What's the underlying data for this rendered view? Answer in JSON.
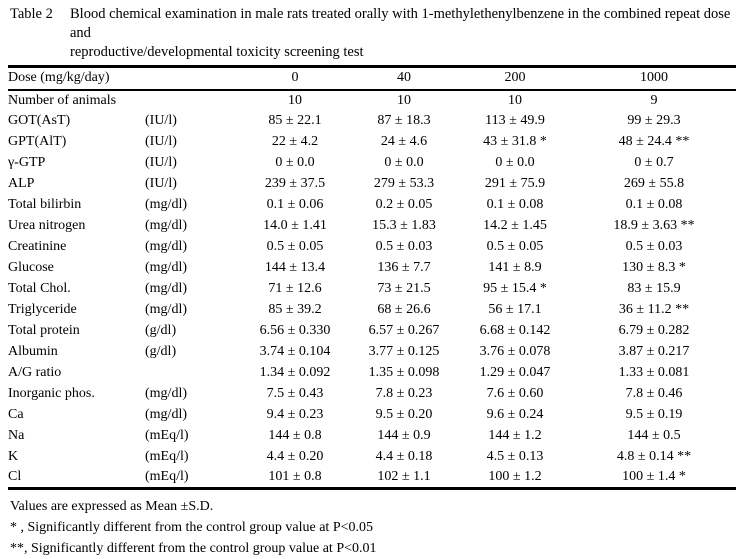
{
  "page": {
    "label": "Table 2",
    "caption_lines": [
      "Blood chemical examination in male rats treated orally with 1-methylethenylbenzene in the combined repeat dose and",
      "reproductive/developmental toxicity screening test"
    ]
  },
  "table": {
    "header": {
      "dose_label": "Dose (mg/kg/day)",
      "doses": [
        "0",
        "40",
        "200",
        "1000"
      ]
    },
    "rows": [
      {
        "param": "Number of animals",
        "unit": "",
        "values": [
          "10",
          "10",
          "10",
          "9"
        ]
      },
      {
        "param": "GOT(AsT)",
        "unit": "(IU/l)",
        "values": [
          "85 ± 22.1",
          "87 ± 18.3",
          "113 ± 49.9",
          "99 ± 29.3"
        ]
      },
      {
        "param": "GPT(AlT)",
        "unit": "(IU/l)",
        "values": [
          "22 ± 4.2",
          "24 ± 4.6",
          "43 ± 31.8 *",
          "48 ± 24.4 **"
        ]
      },
      {
        "param": "γ-GTP",
        "unit": "(IU/l)",
        "values": [
          "0 ± 0.0",
          "0 ± 0.0",
          "0 ± 0.0",
          "0 ± 0.7"
        ]
      },
      {
        "param": "ALP",
        "unit": "(IU/l)",
        "values": [
          "239 ± 37.5",
          "279 ± 53.3",
          "291 ± 75.9",
          "269 ± 55.8"
        ]
      },
      {
        "param": "Total bilirbin",
        "unit": "(mg/dl)",
        "values": [
          "0.1 ± 0.06",
          "0.2 ± 0.05",
          "0.1 ± 0.08",
          "0.1 ± 0.08"
        ]
      },
      {
        "param": "Urea nitrogen",
        "unit": "(mg/dl)",
        "values": [
          "14.0 ± 1.41",
          "15.3 ± 1.83",
          "14.2 ± 1.45",
          "18.9 ± 3.63 **"
        ]
      },
      {
        "param": "Creatinine",
        "unit": "(mg/dl)",
        "values": [
          "0.5 ± 0.05",
          "0.5 ± 0.03",
          "0.5 ± 0.05",
          "0.5 ± 0.03"
        ]
      },
      {
        "param": "Glucose",
        "unit": "(mg/dl)",
        "values": [
          "144 ± 13.4",
          "136 ± 7.7",
          "141 ± 8.9",
          "130 ± 8.3 *"
        ]
      },
      {
        "param": "Total Chol.",
        "unit": "(mg/dl)",
        "values": [
          "71 ± 12.6",
          "73 ± 21.5",
          "95 ± 15.4 *",
          "83 ± 15.9"
        ]
      },
      {
        "param": "Triglyceride",
        "unit": "(mg/dl)",
        "values": [
          "85 ± 39.2",
          "68 ± 26.6",
          "56 ± 17.1",
          "36 ± 11.2 **"
        ]
      },
      {
        "param": "Total protein",
        "unit": "(g/dl)",
        "values": [
          "6.56 ± 0.330",
          "6.57 ± 0.267",
          "6.68 ± 0.142",
          "6.79 ± 0.282"
        ]
      },
      {
        "param": "Albumin",
        "unit": "(g/dl)",
        "values": [
          "3.74 ± 0.104",
          "3.77 ± 0.125",
          "3.76 ± 0.078",
          "3.87 ± 0.217"
        ]
      },
      {
        "param": "A/G ratio",
        "unit": "",
        "values": [
          "1.34 ± 0.092",
          "1.35 ± 0.098",
          "1.29 ± 0.047",
          "1.33 ± 0.081"
        ]
      },
      {
        "param": "Inorganic phos.",
        "unit": "(mg/dl)",
        "values": [
          "7.5 ± 0.43",
          "7.8 ± 0.23",
          "7.6 ± 0.60",
          "7.8 ± 0.46"
        ]
      },
      {
        "param": "Ca",
        "unit": "(mg/dl)",
        "values": [
          "9.4 ± 0.23",
          "9.5 ± 0.20",
          "9.6 ± 0.24",
          "9.5 ± 0.19"
        ]
      },
      {
        "param": "Na",
        "unit": "(mEq/l)",
        "values": [
          "144 ± 0.8",
          "144 ± 0.9",
          "144 ± 1.2",
          "144 ± 0.5"
        ]
      },
      {
        "param": "K",
        "unit": "(mEq/l)",
        "values": [
          "4.4 ± 0.20",
          "4.4 ± 0.18",
          "4.5 ± 0.13",
          "4.8 ± 0.14 **"
        ]
      },
      {
        "param": "Cl",
        "unit": "(mEq/l)",
        "values": [
          "101 ± 0.8",
          "102 ± 1.1",
          "100 ± 1.2",
          "100 ± 1.4 *"
        ]
      }
    ]
  },
  "footnotes": [
    "Values are expressed as Mean ±S.D.",
    "* , Significantly different from the control group value at P<0.05",
    "**, Significantly different from the control group value at P<0.01"
  ]
}
